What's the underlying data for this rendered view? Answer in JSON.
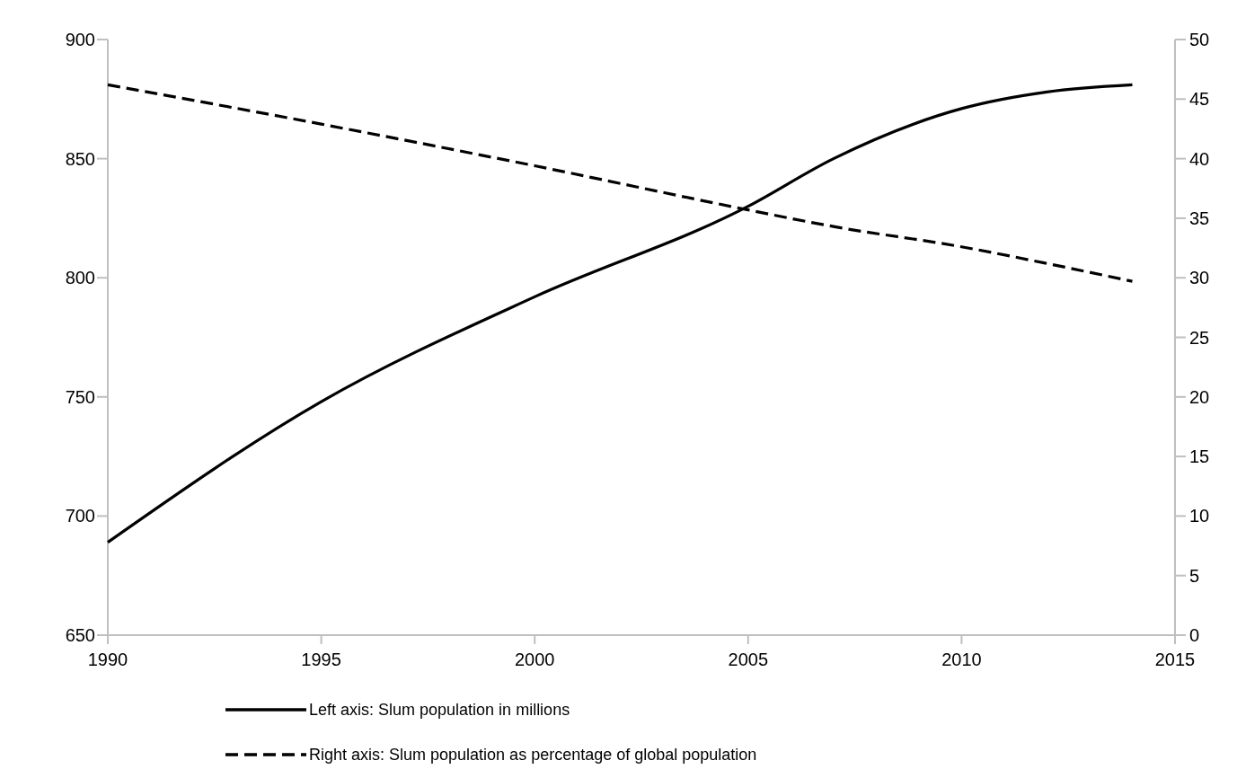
{
  "chart_data": {
    "type": "line",
    "x": [
      1990,
      1995,
      2000,
      2005,
      2007,
      2010,
      2012,
      2014
    ],
    "series": [
      {
        "name": "Left axis: Slum population in millions",
        "color": "#000000",
        "line_style": "solid",
        "values": [
          689,
          748,
          792,
          830,
          850,
          871,
          878,
          881
        ]
      },
      {
        "name": "Right axis: Slum population as percentage of global population",
        "color": "#000000",
        "line_style": "dashed",
        "axis": "y2",
        "values": [
          46.2,
          42.9,
          39.4,
          35.7,
          34.3,
          32.6,
          31.2,
          29.7
        ]
      }
    ],
    "xlim": [
      1990,
      2015
    ],
    "xticks": [
      1990,
      1995,
      2000,
      2005,
      2010,
      2015
    ],
    "ylim": [
      650,
      900
    ],
    "yticks": [
      650,
      700,
      750,
      800,
      850,
      900
    ],
    "y2lim": [
      0,
      50
    ],
    "y2ticks": [
      0,
      5,
      10,
      15,
      20,
      25,
      30,
      35,
      40,
      45,
      50
    ],
    "grid": false,
    "legend": "bottom",
    "marker": "none"
  }
}
